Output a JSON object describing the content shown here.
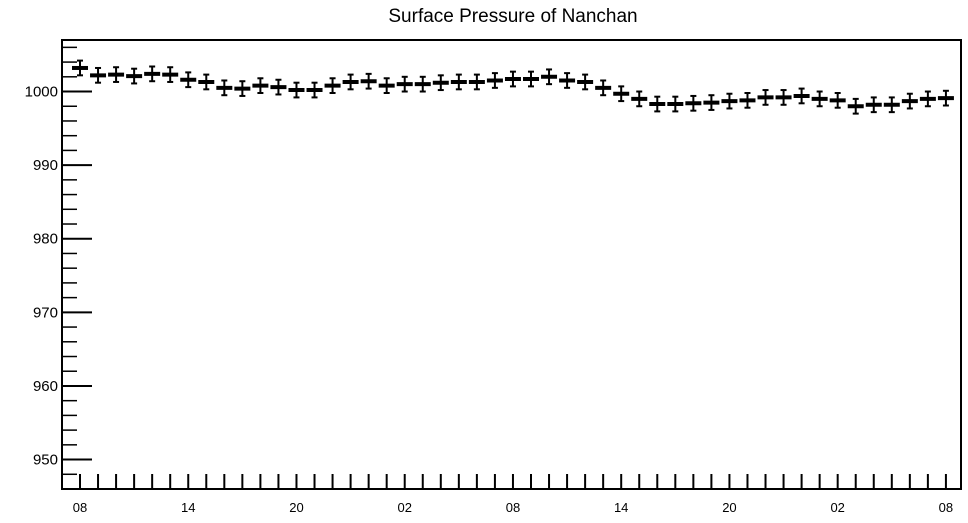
{
  "chart_data": {
    "type": "scatter",
    "title": "Surface Pressure of Nanchan",
    "xlabel": "",
    "ylabel": "",
    "ylim": [
      946,
      1007
    ],
    "yticks": [
      950,
      960,
      970,
      980,
      990,
      1000
    ],
    "ytick_labels": [
      "950",
      "960",
      "970",
      "980",
      "990",
      "1000"
    ],
    "xtick_labels": [
      "08",
      "14",
      "20",
      "02",
      "08",
      "14",
      "20",
      "02",
      "08"
    ],
    "x_hours_per_point": 2,
    "error_bar": 1.0,
    "grid": false,
    "legend": "none",
    "series": [
      {
        "values": [
          1003.2,
          1002.2,
          1002.3,
          1002.1,
          1002.4,
          1002.3,
          1001.6,
          1001.3,
          1000.5,
          1000.4,
          1000.8,
          1000.6,
          1000.2,
          1000.2,
          1000.8,
          1001.3,
          1001.4,
          1000.8,
          1001.0,
          1001.0,
          1001.2,
          1001.3,
          1001.3,
          1001.5,
          1001.7,
          1001.7,
          1002.0,
          1001.5,
          1001.3,
          1000.5,
          999.7,
          999.0,
          998.3,
          998.3,
          998.4,
          998.5,
          998.7,
          998.8,
          999.2,
          999.2,
          999.4,
          999.0,
          998.8,
          998.0,
          998.2,
          998.2,
          998.7,
          999.0,
          999.1
        ]
      }
    ],
    "colors": {
      "marker": "#000000",
      "axis": "#000000"
    }
  }
}
